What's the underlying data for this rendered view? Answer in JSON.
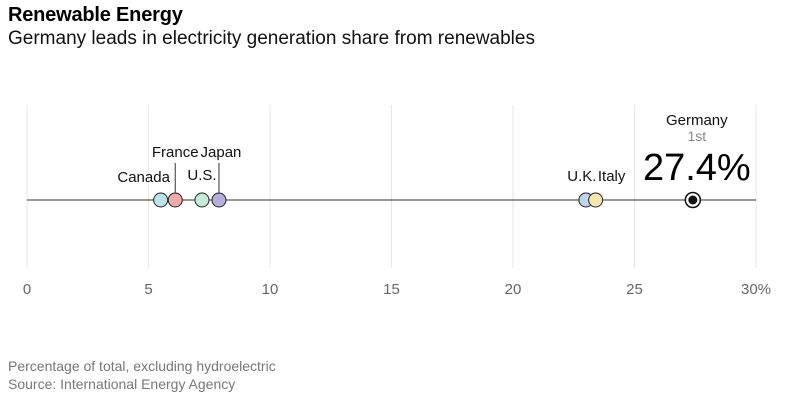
{
  "header": {
    "title": "Renewable Energy",
    "subtitle": "Germany leads in electricity generation share from renewables"
  },
  "footer": {
    "note": "Percentage of total, excluding hydroelectric",
    "source": "Source: International Energy Agency"
  },
  "chart_data": {
    "type": "scatter",
    "title": "Renewable Energy",
    "subtitle": "Germany leads in electricity generation share from renewables",
    "xlim": [
      0,
      30
    ],
    "ticks": [
      0,
      5,
      10,
      15,
      20,
      25,
      30
    ],
    "tick_labels": [
      "0",
      "5",
      "10",
      "15",
      "20",
      "25",
      "30%"
    ],
    "grid": true,
    "points": [
      {
        "name": "Canada",
        "value": 5.5,
        "color": "#b8e4ea"
      },
      {
        "name": "France",
        "value": 6.1,
        "color": "#f4a9ad"
      },
      {
        "name": "U.S.",
        "value": 7.2,
        "color": "#c5ecd9"
      },
      {
        "name": "Japan",
        "value": 7.9,
        "color": "#b6aee0"
      },
      {
        "name": "U.K.",
        "value": 23.0,
        "color": "#bcd4ec"
      },
      {
        "name": "Italy",
        "value": 23.4,
        "color": "#f8e5b0"
      },
      {
        "name": "Germany",
        "value": 27.4,
        "color": "#111111",
        "highlight": true,
        "rank": "1st",
        "value_label": "27.4%"
      }
    ]
  }
}
